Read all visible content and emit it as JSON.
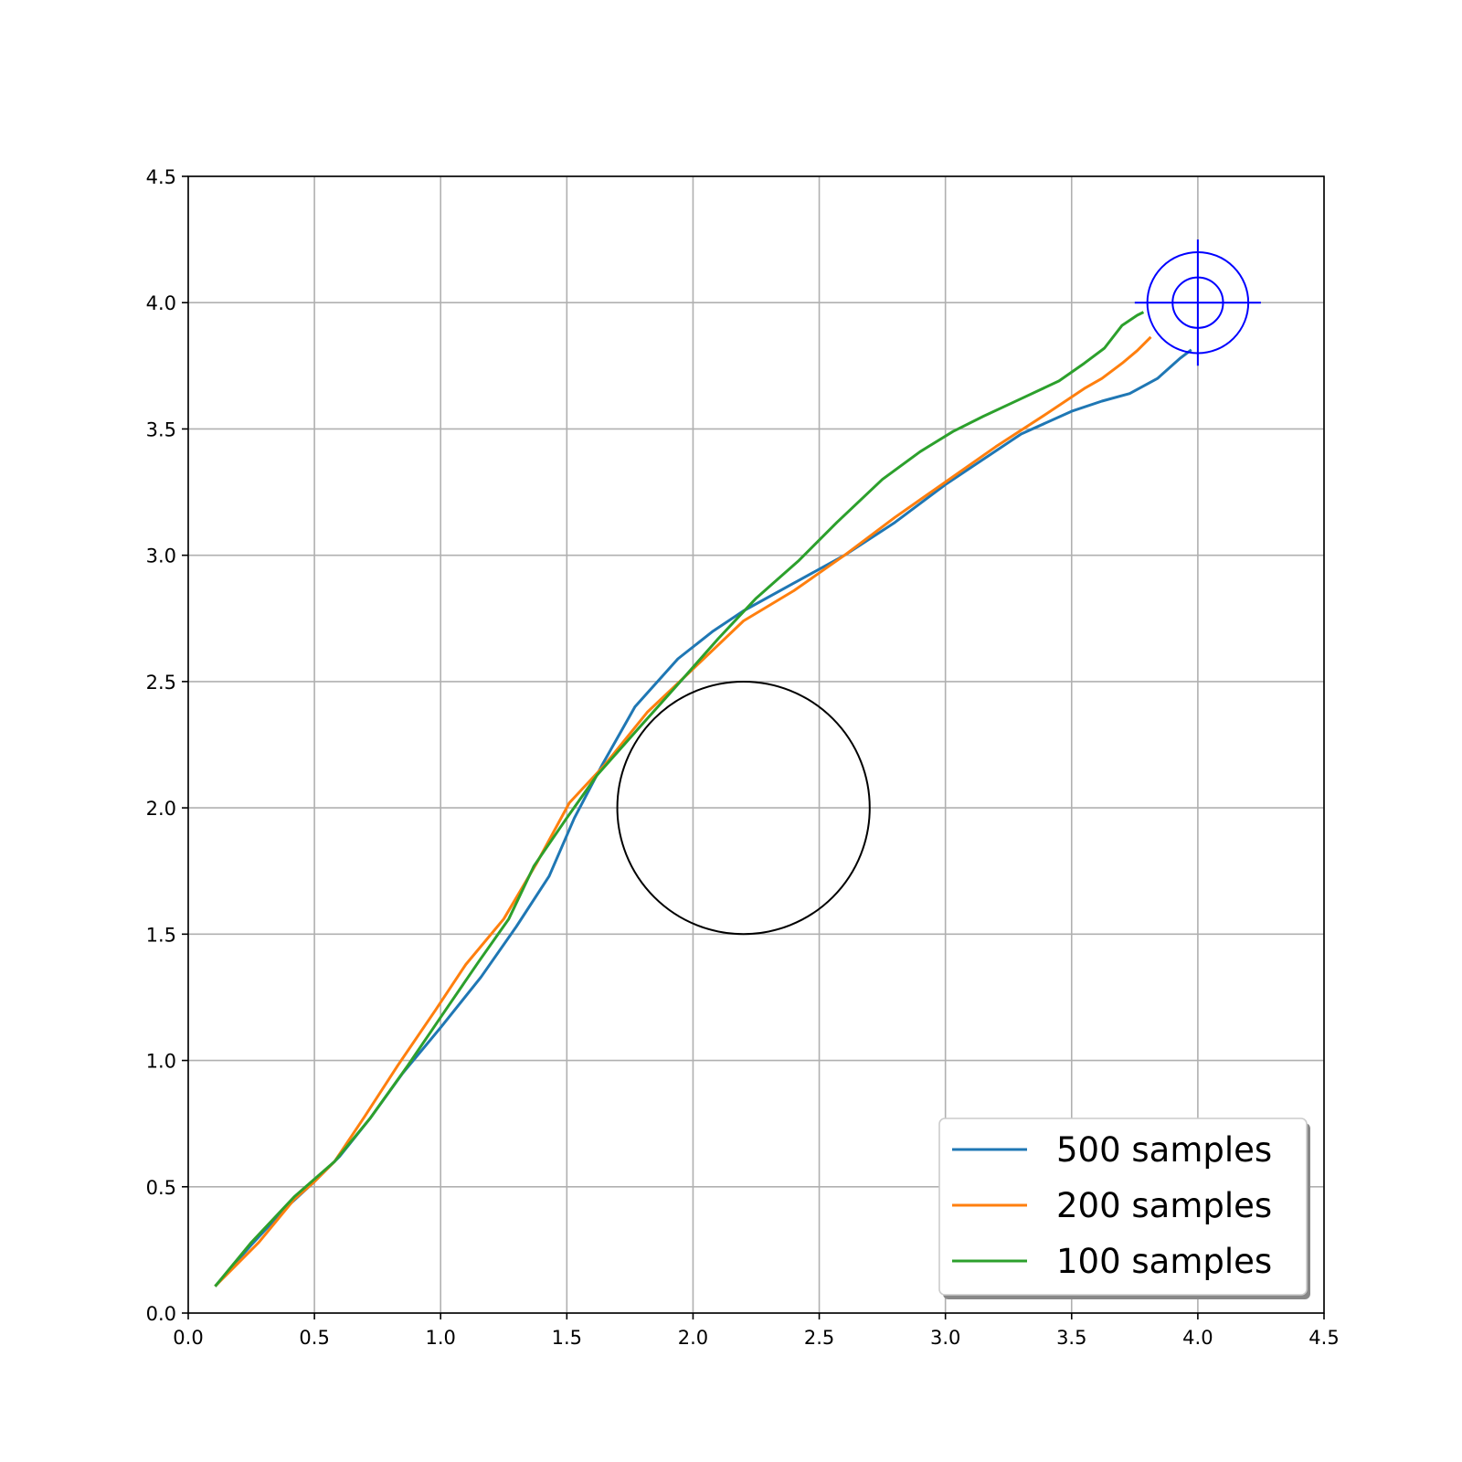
{
  "chart_data": {
    "type": "line",
    "title": "",
    "xlabel": "",
    "ylabel": "",
    "xlim": [
      0.0,
      4.5
    ],
    "ylim": [
      0.0,
      4.5
    ],
    "grid": true,
    "x_ticks": [
      "0.0",
      "0.5",
      "1.0",
      "1.5",
      "2.0",
      "2.5",
      "3.0",
      "3.5",
      "4.0",
      "4.5"
    ],
    "y_ticks": [
      "0.0",
      "0.5",
      "1.0",
      "1.5",
      "2.0",
      "2.5",
      "3.0",
      "3.5",
      "4.0",
      "4.5"
    ],
    "legend": {
      "placement": "lower-right"
    },
    "series": [
      {
        "name": "500 samples",
        "color": "#1f77b4",
        "points": [
          [
            0.11,
            0.11
          ],
          [
            0.25,
            0.27
          ],
          [
            0.38,
            0.41
          ],
          [
            0.5,
            0.52
          ],
          [
            0.6,
            0.62
          ],
          [
            0.72,
            0.77
          ],
          [
            0.85,
            0.95
          ],
          [
            1.0,
            1.13
          ],
          [
            1.16,
            1.33
          ],
          [
            1.3,
            1.53
          ],
          [
            1.43,
            1.73
          ],
          [
            1.53,
            1.96
          ],
          [
            1.64,
            2.17
          ],
          [
            1.77,
            2.4
          ],
          [
            1.94,
            2.59
          ],
          [
            2.08,
            2.7
          ],
          [
            2.2,
            2.78
          ],
          [
            2.4,
            2.89
          ],
          [
            2.6,
            3.0
          ],
          [
            2.8,
            3.13
          ],
          [
            3.0,
            3.28
          ],
          [
            3.15,
            3.38
          ],
          [
            3.3,
            3.48
          ],
          [
            3.5,
            3.57
          ],
          [
            3.62,
            3.61
          ],
          [
            3.73,
            3.64
          ],
          [
            3.84,
            3.7
          ],
          [
            3.93,
            3.78
          ],
          [
            3.97,
            3.81
          ]
        ]
      },
      {
        "name": "200 samples",
        "color": "#ff7f0e",
        "points": [
          [
            0.11,
            0.11
          ],
          [
            0.28,
            0.28
          ],
          [
            0.42,
            0.45
          ],
          [
            0.5,
            0.52
          ],
          [
            0.58,
            0.6
          ],
          [
            0.7,
            0.78
          ],
          [
            0.83,
            0.98
          ],
          [
            0.98,
            1.2
          ],
          [
            1.1,
            1.38
          ],
          [
            1.25,
            1.56
          ],
          [
            1.38,
            1.78
          ],
          [
            1.51,
            2.02
          ],
          [
            1.65,
            2.17
          ],
          [
            1.82,
            2.38
          ],
          [
            2.0,
            2.55
          ],
          [
            2.2,
            2.74
          ],
          [
            2.4,
            2.86
          ],
          [
            2.6,
            3.0
          ],
          [
            2.8,
            3.15
          ],
          [
            3.0,
            3.29
          ],
          [
            3.2,
            3.43
          ],
          [
            3.4,
            3.56
          ],
          [
            3.55,
            3.66
          ],
          [
            3.62,
            3.7
          ],
          [
            3.7,
            3.76
          ],
          [
            3.76,
            3.81
          ],
          [
            3.81,
            3.86
          ]
        ]
      },
      {
        "name": "100 samples",
        "color": "#2ca02c",
        "points": [
          [
            0.11,
            0.11
          ],
          [
            0.25,
            0.28
          ],
          [
            0.42,
            0.46
          ],
          [
            0.58,
            0.6
          ],
          [
            0.72,
            0.77
          ],
          [
            0.87,
            0.98
          ],
          [
            1.02,
            1.2
          ],
          [
            1.15,
            1.39
          ],
          [
            1.27,
            1.56
          ],
          [
            1.37,
            1.77
          ],
          [
            1.5,
            1.96
          ],
          [
            1.62,
            2.13
          ],
          [
            1.78,
            2.31
          ],
          [
            1.95,
            2.5
          ],
          [
            2.1,
            2.67
          ],
          [
            2.25,
            2.83
          ],
          [
            2.42,
            2.98
          ],
          [
            2.57,
            3.13
          ],
          [
            2.75,
            3.3
          ],
          [
            2.9,
            3.41
          ],
          [
            3.03,
            3.49
          ],
          [
            3.15,
            3.55
          ],
          [
            3.3,
            3.62
          ],
          [
            3.45,
            3.69
          ],
          [
            3.55,
            3.76
          ],
          [
            3.63,
            3.82
          ],
          [
            3.7,
            3.91
          ],
          [
            3.76,
            3.95
          ],
          [
            3.78,
            3.96
          ]
        ]
      }
    ],
    "annotations": {
      "obstacle_circle": {
        "center": [
          2.2,
          2.0
        ],
        "radius": 0.5,
        "color": "#000000"
      },
      "target": {
        "center": [
          4.0,
          4.0
        ],
        "outer_radius": 0.2,
        "inner_radius": 0.1,
        "cross_half_length": 0.25,
        "color": "#0000ff"
      }
    }
  }
}
